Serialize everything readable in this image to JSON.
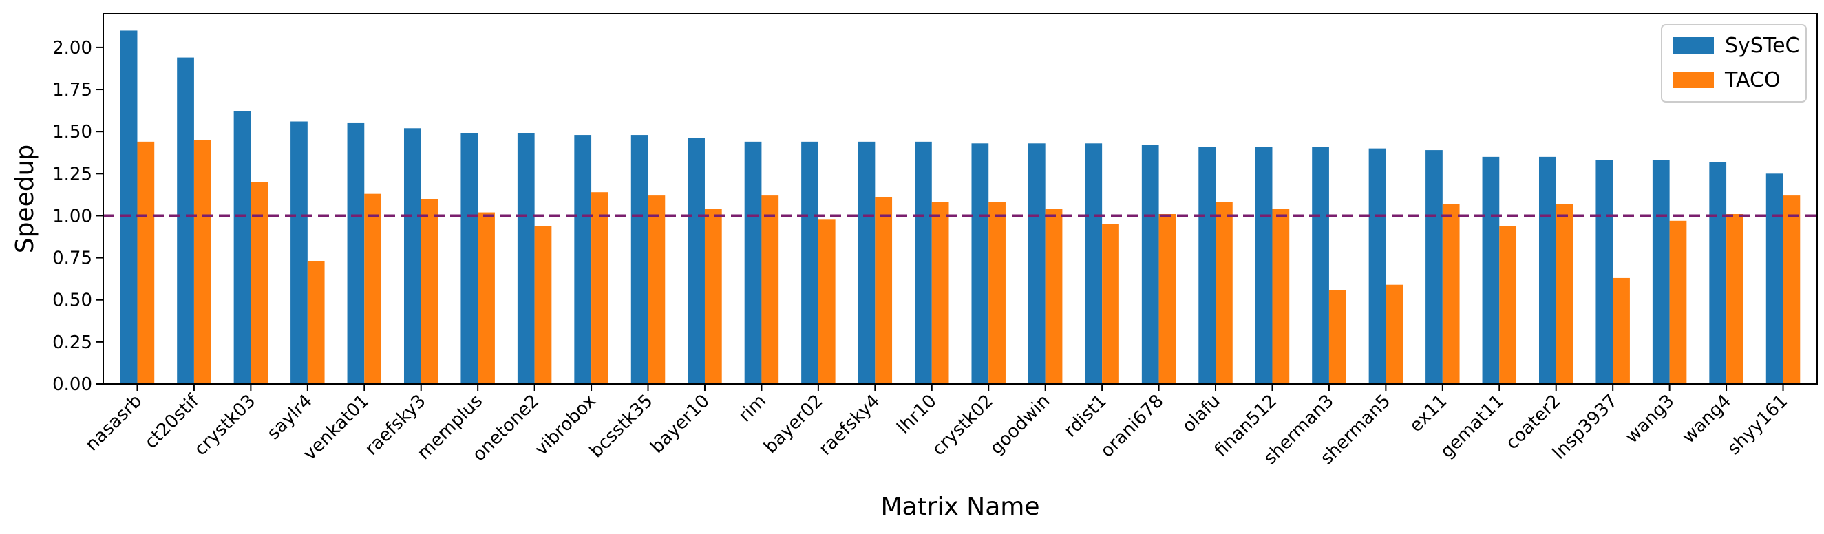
{
  "chart_data": {
    "type": "bar",
    "xlabel": "Matrix Name",
    "ylabel": "Speedup",
    "ylim": [
      0,
      2.2
    ],
    "yticks": [
      0.0,
      0.25,
      0.5,
      0.75,
      1.0,
      1.25,
      1.5,
      1.75,
      2.0
    ],
    "ytick_labels": [
      "0.00",
      "0.25",
      "0.50",
      "0.75",
      "1.00",
      "1.25",
      "1.50",
      "1.75",
      "2.00"
    ],
    "reference_line": 1.0,
    "grid": false,
    "legend_position": "top-right",
    "categories": [
      "nasasrb",
      "ct20stif",
      "crystk03",
      "saylr4",
      "venkat01",
      "raefsky3",
      "memplus",
      "onetone2",
      "vibrobox",
      "bcsstk35",
      "bayer10",
      "rim",
      "bayer02",
      "raefsky4",
      "lhr10",
      "crystk02",
      "goodwin",
      "rdist1",
      "orani678",
      "olafu",
      "finan512",
      "sherman3",
      "sherman5",
      "ex11",
      "gemat11",
      "coater2",
      "lnsp3937",
      "wang3",
      "wang4",
      "shyy161"
    ],
    "series": [
      {
        "name": "SySTeC",
        "color": "#1f77b4",
        "values": [
          2.1,
          1.94,
          1.62,
          1.56,
          1.55,
          1.52,
          1.49,
          1.49,
          1.48,
          1.48,
          1.46,
          1.44,
          1.44,
          1.44,
          1.44,
          1.43,
          1.43,
          1.43,
          1.42,
          1.41,
          1.41,
          1.41,
          1.4,
          1.39,
          1.35,
          1.35,
          1.33,
          1.33,
          1.32,
          1.25
        ]
      },
      {
        "name": "TACO",
        "color": "#ff7f0e",
        "values": [
          1.44,
          1.45,
          1.2,
          0.73,
          1.13,
          1.1,
          1.02,
          0.94,
          1.14,
          1.12,
          1.04,
          1.12,
          0.98,
          1.11,
          1.08,
          1.08,
          1.04,
          0.95,
          1.01,
          1.08,
          1.04,
          0.56,
          0.59,
          1.07,
          0.94,
          1.07,
          0.63,
          0.97,
          1.01,
          1.12
        ]
      }
    ],
    "reference_line_color": "#7a1f6e"
  }
}
